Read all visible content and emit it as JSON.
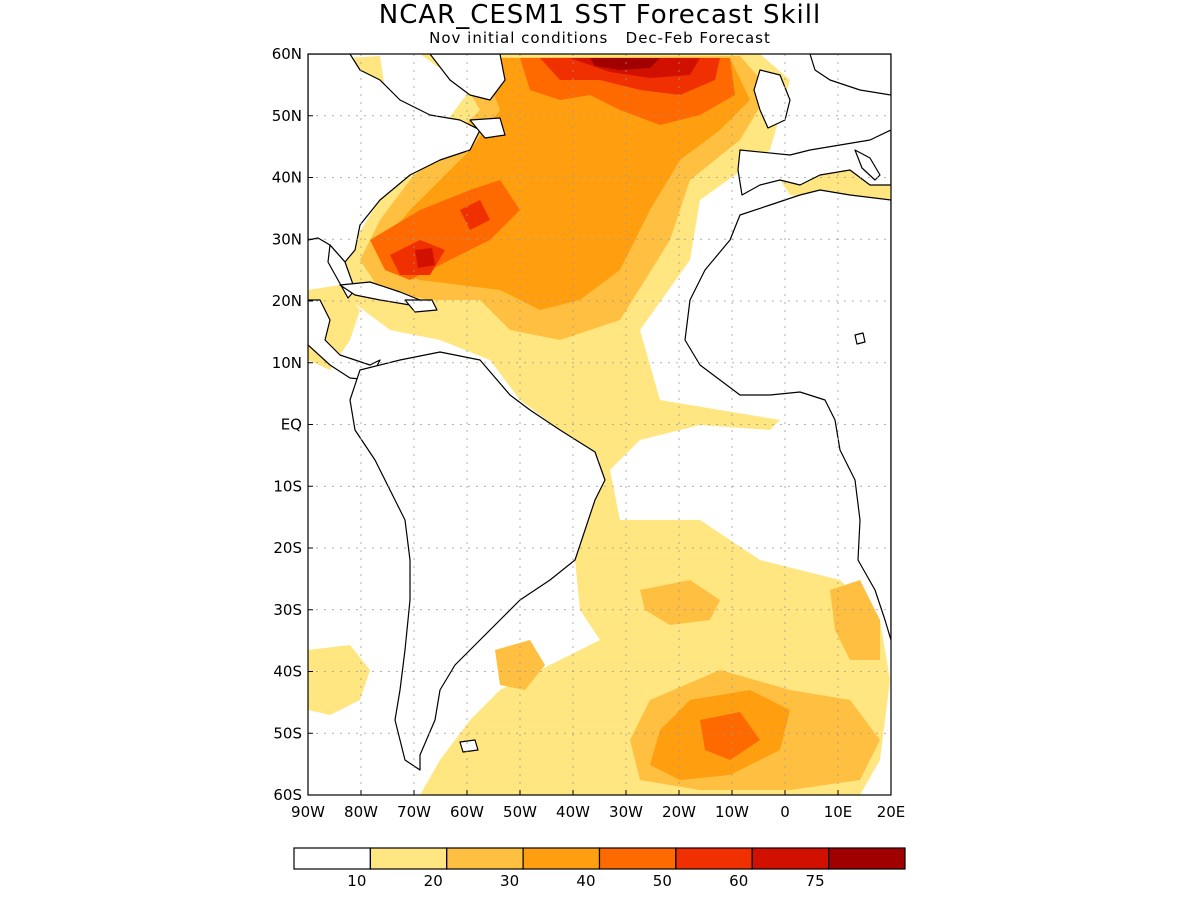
{
  "title": "NCAR_CESM1  SST Forecast Skill",
  "subtitle": "Nov initial conditions   Dec-Feb Forecast",
  "map": {
    "lon_range": [
      -90,
      20
    ],
    "lat_range": [
      -60,
      60
    ],
    "lat_ticks": [
      "60N",
      "50N",
      "40N",
      "30N",
      "20N",
      "10N",
      "EQ",
      "10S",
      "20S",
      "30S",
      "40S",
      "50S",
      "60S"
    ],
    "lon_ticks": [
      "90W",
      "80W",
      "70W",
      "60W",
      "50W",
      "40W",
      "30W",
      "20W",
      "10W",
      "0",
      "10E",
      "20E"
    ],
    "gridlines": true
  },
  "colorbar": {
    "colors": [
      "#ffffff",
      "#ffe680",
      "#ffbf40",
      "#ff9f10",
      "#ff6a00",
      "#f03000",
      "#d21000",
      "#a00000"
    ],
    "labels": [
      "10",
      "20",
      "30",
      "40",
      "50",
      "60",
      "75"
    ]
  }
}
